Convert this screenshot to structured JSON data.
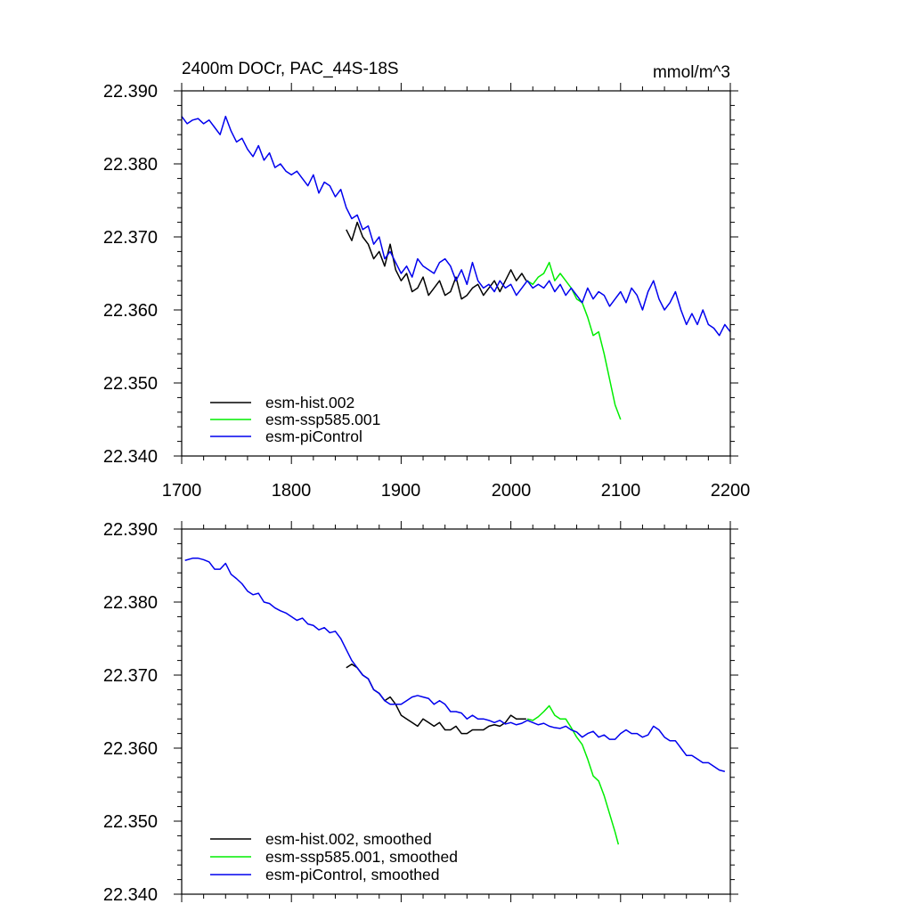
{
  "chart_data": [
    {
      "type": "line",
      "title": "2400m DOCr, PAC_44S-18S",
      "units": "mmol/m^3",
      "xlabel": "",
      "ylabel": "",
      "xlim": [
        1700,
        2200
      ],
      "ylim": [
        22.34,
        22.39
      ],
      "x_ticks": [
        "1700",
        "1800",
        "1900",
        "2000",
        "2100",
        "2200"
      ],
      "y_ticks": [
        "22.340",
        "22.350",
        "22.360",
        "22.370",
        "22.380",
        "22.390"
      ],
      "legend_position": "bottom-left",
      "legend": [
        "esm-hist.002",
        "esm-ssp585.001",
        "esm-piControl"
      ],
      "series": [
        {
          "name": "esm-hist.002",
          "color": "#000000",
          "x": [
            1850,
            1855,
            1860,
            1865,
            1870,
            1875,
            1880,
            1885,
            1890,
            1895,
            1900,
            1905,
            1910,
            1915,
            1920,
            1925,
            1930,
            1935,
            1940,
            1945,
            1950,
            1955,
            1960,
            1965,
            1970,
            1975,
            1980,
            1985,
            1990,
            1995,
            2000,
            2005,
            2010,
            2014
          ],
          "y": [
            22.371,
            22.3695,
            22.372,
            22.37,
            22.369,
            22.367,
            22.368,
            22.366,
            22.369,
            22.3655,
            22.364,
            22.365,
            22.3625,
            22.363,
            22.3645,
            22.362,
            22.363,
            22.364,
            22.362,
            22.3625,
            22.3645,
            22.3615,
            22.362,
            22.363,
            22.3635,
            22.362,
            22.363,
            22.364,
            22.3625,
            22.364,
            22.3655,
            22.364,
            22.365,
            22.364
          ]
        },
        {
          "name": "esm-ssp585.001",
          "color": "#00ee00",
          "x": [
            2015,
            2020,
            2025,
            2030,
            2035,
            2040,
            2045,
            2050,
            2055,
            2060,
            2065,
            2070,
            2075,
            2080,
            2085,
            2090,
            2095,
            2100
          ],
          "y": [
            22.364,
            22.3635,
            22.3645,
            22.365,
            22.3665,
            22.364,
            22.365,
            22.364,
            22.363,
            22.3615,
            22.361,
            22.359,
            22.3565,
            22.357,
            22.354,
            22.3505,
            22.347,
            22.345
          ]
        },
        {
          "name": "esm-piControl",
          "color": "#0000ee",
          "x": [
            1700,
            1705,
            1710,
            1715,
            1720,
            1725,
            1730,
            1735,
            1740,
            1745,
            1750,
            1755,
            1760,
            1765,
            1770,
            1775,
            1780,
            1785,
            1790,
            1795,
            1800,
            1805,
            1810,
            1815,
            1820,
            1825,
            1830,
            1835,
            1840,
            1845,
            1850,
            1855,
            1860,
            1865,
            1870,
            1875,
            1880,
            1885,
            1890,
            1895,
            1900,
            1905,
            1910,
            1915,
            1920,
            1925,
            1930,
            1935,
            1940,
            1945,
            1950,
            1955,
            1960,
            1965,
            1970,
            1975,
            1980,
            1985,
            1990,
            1995,
            2000,
            2005,
            2010,
            2015,
            2020,
            2025,
            2030,
            2035,
            2040,
            2045,
            2050,
            2055,
            2060,
            2065,
            2070,
            2075,
            2080,
            2085,
            2090,
            2095,
            2100,
            2105,
            2110,
            2115,
            2120,
            2125,
            2130,
            2135,
            2140,
            2145,
            2150,
            2155,
            2160,
            2165,
            2170,
            2175,
            2180,
            2185,
            2190,
            2195,
            2200
          ],
          "y": [
            22.3865,
            22.3855,
            22.386,
            22.3862,
            22.3855,
            22.386,
            22.385,
            22.384,
            22.3865,
            22.3845,
            22.383,
            22.3835,
            22.382,
            22.381,
            22.3825,
            22.3805,
            22.3815,
            22.3795,
            22.38,
            22.379,
            22.3785,
            22.379,
            22.378,
            22.377,
            22.3785,
            22.376,
            22.3775,
            22.377,
            22.3755,
            22.3765,
            22.374,
            22.3725,
            22.373,
            22.371,
            22.3715,
            22.369,
            22.37,
            22.367,
            22.368,
            22.3665,
            22.365,
            22.366,
            22.3645,
            22.367,
            22.366,
            22.3655,
            22.365,
            22.3665,
            22.367,
            22.366,
            22.364,
            22.3655,
            22.3635,
            22.3665,
            22.364,
            22.363,
            22.3635,
            22.3625,
            22.364,
            22.363,
            22.3635,
            22.362,
            22.363,
            22.364,
            22.363,
            22.3635,
            22.363,
            22.364,
            22.3625,
            22.3635,
            22.362,
            22.363,
            22.362,
            22.361,
            22.363,
            22.3615,
            22.3625,
            22.362,
            22.3605,
            22.3615,
            22.3625,
            22.361,
            22.363,
            22.362,
            22.36,
            22.3625,
            22.364,
            22.3615,
            22.36,
            22.361,
            22.3625,
            22.36,
            22.358,
            22.3595,
            22.358,
            22.36,
            22.358,
            22.3575,
            22.3565,
            22.358,
            22.357
          ]
        }
      ]
    },
    {
      "type": "line",
      "title": "",
      "xlabel": "",
      "ylabel": "",
      "xlim": [
        1700,
        2200
      ],
      "ylim": [
        22.34,
        22.39
      ],
      "x_ticks": [],
      "y_ticks": [
        "22.340",
        "22.350",
        "22.360",
        "22.370",
        "22.380",
        "22.390"
      ],
      "legend_position": "bottom-left",
      "legend": [
        "esm-hist.002, smoothed",
        "esm-ssp585.001, smoothed",
        "esm-piControl, smoothed"
      ],
      "series": [
        {
          "name": "esm-hist.002, smoothed",
          "color": "#000000",
          "x": [
            1850,
            1855,
            1860,
            1865,
            1870,
            1875,
            1880,
            1885,
            1890,
            1895,
            1900,
            1905,
            1910,
            1915,
            1920,
            1925,
            1930,
            1935,
            1940,
            1945,
            1950,
            1955,
            1960,
            1965,
            1970,
            1975,
            1980,
            1985,
            1990,
            1995,
            2000,
            2005,
            2010,
            2014
          ],
          "y": [
            22.371,
            22.3715,
            22.371,
            22.37,
            22.3695,
            22.368,
            22.3675,
            22.3665,
            22.367,
            22.366,
            22.3645,
            22.364,
            22.3635,
            22.363,
            22.364,
            22.3635,
            22.363,
            22.3635,
            22.3625,
            22.3625,
            22.363,
            22.362,
            22.362,
            22.3625,
            22.3625,
            22.3625,
            22.363,
            22.3632,
            22.363,
            22.3635,
            22.3645,
            22.364,
            22.364,
            22.364
          ]
        },
        {
          "name": "esm-ssp585.001, smoothed",
          "color": "#00ee00",
          "x": [
            2015,
            2020,
            2025,
            2030,
            2035,
            2040,
            2045,
            2050,
            2055,
            2060,
            2065,
            2070,
            2075,
            2080,
            2085,
            2090,
            2095,
            2098
          ],
          "y": [
            22.364,
            22.3638,
            22.3643,
            22.365,
            22.3658,
            22.3645,
            22.364,
            22.364,
            22.3628,
            22.3615,
            22.3605,
            22.3585,
            22.3562,
            22.3555,
            22.3535,
            22.351,
            22.3485,
            22.3468
          ]
        },
        {
          "name": "esm-piControl, smoothed",
          "color": "#0000ee",
          "x": [
            1703,
            1710,
            1715,
            1720,
            1725,
            1730,
            1735,
            1740,
            1745,
            1750,
            1755,
            1760,
            1765,
            1770,
            1775,
            1780,
            1785,
            1790,
            1795,
            1800,
            1805,
            1810,
            1815,
            1820,
            1825,
            1830,
            1835,
            1840,
            1845,
            1850,
            1855,
            1860,
            1865,
            1870,
            1875,
            1880,
            1885,
            1890,
            1895,
            1900,
            1905,
            1910,
            1915,
            1920,
            1925,
            1930,
            1935,
            1940,
            1945,
            1950,
            1955,
            1960,
            1965,
            1970,
            1975,
            1980,
            1985,
            1990,
            1995,
            2000,
            2005,
            2010,
            2015,
            2020,
            2025,
            2030,
            2035,
            2040,
            2045,
            2050,
            2055,
            2060,
            2065,
            2070,
            2075,
            2080,
            2085,
            2090,
            2095,
            2100,
            2105,
            2110,
            2115,
            2120,
            2125,
            2130,
            2135,
            2140,
            2145,
            2150,
            2155,
            2160,
            2165,
            2170,
            2175,
            2180,
            2185,
            2190,
            2195
          ],
          "y": [
            22.3857,
            22.386,
            22.386,
            22.3858,
            22.3855,
            22.3845,
            22.3845,
            22.3853,
            22.3838,
            22.3832,
            22.3825,
            22.3815,
            22.381,
            22.3812,
            22.38,
            22.3798,
            22.3792,
            22.3788,
            22.3785,
            22.378,
            22.3775,
            22.3778,
            22.377,
            22.3768,
            22.3762,
            22.3765,
            22.3758,
            22.376,
            22.375,
            22.3735,
            22.372,
            22.371,
            22.37,
            22.3695,
            22.368,
            22.3675,
            22.3665,
            22.366,
            22.366,
            22.366,
            22.3665,
            22.367,
            22.3672,
            22.367,
            22.3668,
            22.366,
            22.3665,
            22.366,
            22.365,
            22.365,
            22.3648,
            22.364,
            22.3645,
            22.364,
            22.364,
            22.3638,
            22.3635,
            22.3638,
            22.3633,
            22.3635,
            22.3632,
            22.3634,
            22.3638,
            22.3635,
            22.3632,
            22.3634,
            22.363,
            22.3628,
            22.3627,
            22.363,
            22.3625,
            22.3622,
            22.3615,
            22.362,
            22.3623,
            22.3615,
            22.3618,
            22.3612,
            22.3612,
            22.362,
            22.3625,
            22.362,
            22.362,
            22.3615,
            22.3618,
            22.363,
            22.3625,
            22.3615,
            22.361,
            22.361,
            22.36,
            22.359,
            22.359,
            22.3585,
            22.358,
            22.358,
            22.3575,
            22.357,
            22.3568
          ]
        }
      ]
    }
  ]
}
